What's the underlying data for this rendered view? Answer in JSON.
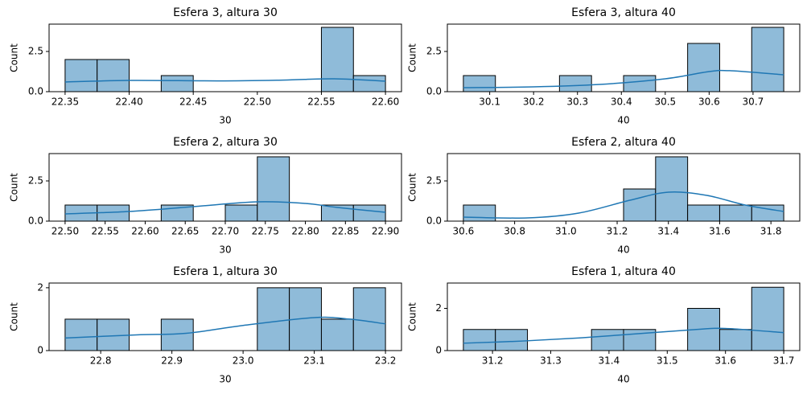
{
  "chart_data": [
    {
      "type": "histogram",
      "title": "Esfera 3, altura 30",
      "xlabel": "30",
      "ylabel": "Count",
      "bins": [
        22.35,
        22.375,
        22.4,
        22.425,
        22.45,
        22.475,
        22.5,
        22.525,
        22.55,
        22.575,
        22.6
      ],
      "values": [
        2,
        2,
        0,
        1,
        0,
        0,
        0,
        0,
        4,
        1
      ],
      "color": "#8fbbd9",
      "edgecolor": "#000000",
      "kde": {
        "color": "#1f77b4",
        "x": [
          22.35,
          22.4,
          22.47,
          22.52,
          22.56,
          22.6
        ],
        "values": [
          0.6,
          0.7,
          0.67,
          0.72,
          0.8,
          0.65
        ]
      },
      "xlim": [
        22.3375,
        22.6125
      ],
      "ylim": [
        0,
        4.2
      ],
      "xticks": [
        22.35,
        {
          "value": 22.4,
          "label": "22.40"
        },
        22.45,
        {
          "value": 22.5,
          "label": "22.50"
        },
        22.55,
        {
          "value": 22.6,
          "label": "22.60"
        }
      ],
      "yticks": [
        {
          "value": 0,
          "label": "0.0"
        },
        2.5
      ]
    },
    {
      "type": "histogram",
      "title": "Esfera 3, altura 40",
      "xlabel": "40",
      "ylabel": "Count",
      "bins": [
        30.04,
        30.113,
        30.186,
        30.259,
        30.332,
        30.405,
        30.478,
        30.551,
        30.624,
        30.697,
        30.77
      ],
      "values": [
        1,
        0,
        0,
        1,
        0,
        1,
        0,
        3,
        0,
        4
      ],
      "color": "#8fbbd9",
      "edgecolor": "#000000",
      "kde": {
        "color": "#1f77b4",
        "x": [
          30.04,
          30.2,
          30.35,
          30.5,
          30.6,
          30.65,
          30.77
        ],
        "values": [
          0.25,
          0.3,
          0.45,
          0.8,
          1.25,
          1.3,
          1.05
        ]
      },
      "xlim": [
        30.0035,
        30.8065
      ],
      "ylim": [
        0,
        4.2
      ],
      "xticks": [
        30.1,
        30.2,
        30.3,
        30.4,
        30.5,
        30.6,
        30.7
      ],
      "yticks": [
        {
          "value": 0,
          "label": "0.0"
        },
        2.5
      ]
    },
    {
      "type": "histogram",
      "title": "Esfera 2, altura 30",
      "xlabel": "30",
      "ylabel": "Count",
      "bins": [
        22.5,
        22.54,
        22.58,
        22.62,
        22.66,
        22.7,
        22.74,
        22.78,
        22.82,
        22.86,
        22.9
      ],
      "values": [
        1,
        1,
        0,
        1,
        0,
        1,
        4,
        0,
        1,
        1
      ],
      "color": "#8fbbd9",
      "edgecolor": "#000000",
      "kde": {
        "color": "#1f77b4",
        "x": [
          22.5,
          22.58,
          22.66,
          22.74,
          22.8,
          22.84,
          22.9
        ],
        "values": [
          0.45,
          0.6,
          0.9,
          1.2,
          1.1,
          0.85,
          0.55
        ]
      },
      "xlim": [
        22.48,
        22.92
      ],
      "ylim": [
        0,
        4.2
      ],
      "xticks": [
        {
          "value": 22.5,
          "label": "22.50"
        },
        22.55,
        {
          "value": 22.6,
          "label": "22.60"
        },
        22.65,
        {
          "value": 22.7,
          "label": "22.70"
        },
        22.75,
        {
          "value": 22.8,
          "label": "22.80"
        },
        22.85,
        {
          "value": 22.9,
          "label": "22.90"
        }
      ],
      "yticks": [
        {
          "value": 0,
          "label": "0.0"
        },
        2.5
      ]
    },
    {
      "type": "histogram",
      "title": "Esfera 2, altura 40",
      "xlabel": "40",
      "ylabel": "Count",
      "bins": [
        30.6,
        30.725,
        30.85,
        30.975,
        31.1,
        31.225,
        31.35,
        31.475,
        31.6,
        31.725,
        31.85
      ],
      "values": [
        1,
        0,
        0,
        0,
        0,
        2,
        4,
        1,
        1,
        1
      ],
      "color": "#8fbbd9",
      "edgecolor": "#000000",
      "kde": {
        "color": "#1f77b4",
        "x": [
          30.6,
          30.85,
          31.05,
          31.25,
          31.4,
          31.55,
          31.7,
          31.85
        ],
        "values": [
          0.25,
          0.2,
          0.5,
          1.3,
          1.8,
          1.6,
          1.0,
          0.6
        ]
      },
      "xlim": [
        30.5375,
        31.9125
      ],
      "ylim": [
        0,
        4.2
      ],
      "xticks": [
        30.6,
        30.8,
        {
          "value": 31,
          "label": "31.0"
        },
        31.2,
        31.4,
        31.6,
        31.8
      ],
      "yticks": [
        {
          "value": 0,
          "label": "0.0"
        },
        2.5
      ]
    },
    {
      "type": "histogram",
      "title": "Esfera 1, altura 30",
      "xlabel": "30",
      "ylabel": "Count",
      "bins": [
        22.75,
        22.795,
        22.84,
        22.885,
        22.93,
        22.975,
        23.02,
        23.065,
        23.11,
        23.155,
        23.2
      ],
      "values": [
        1,
        1,
        0,
        1,
        0,
        0,
        2,
        2,
        1,
        2
      ],
      "color": "#8fbbd9",
      "edgecolor": "#000000",
      "kde": {
        "color": "#1f77b4",
        "x": [
          22.75,
          22.85,
          22.92,
          23.0,
          23.1,
          23.15,
          23.2
        ],
        "values": [
          0.4,
          0.5,
          0.55,
          0.8,
          1.05,
          1.0,
          0.85
        ]
      },
      "xlim": [
        22.7275,
        23.2225
      ],
      "ylim": [
        0,
        2.15
      ],
      "xticks": [
        22.8,
        22.9,
        {
          "value": 23,
          "label": "23.0"
        },
        23.1,
        23.2
      ],
      "yticks": [
        0,
        2
      ]
    },
    {
      "type": "histogram",
      "title": "Esfera 1, altura 40",
      "xlabel": "40",
      "ylabel": "Count",
      "bins": [
        31.15,
        31.205,
        31.26,
        31.315,
        31.37,
        31.425,
        31.48,
        31.535,
        31.59,
        31.645,
        31.7
      ],
      "values": [
        1,
        1,
        0,
        0,
        1,
        1,
        0,
        2,
        1,
        3
      ],
      "color": "#8fbbd9",
      "edgecolor": "#000000",
      "kde": {
        "color": "#1f77b4",
        "x": [
          31.15,
          31.25,
          31.35,
          31.45,
          31.55,
          31.6,
          31.7
        ],
        "values": [
          0.35,
          0.45,
          0.6,
          0.8,
          1.0,
          1.05,
          0.85
        ]
      },
      "xlim": [
        31.1225,
        31.7275
      ],
      "ylim": [
        0,
        3.2
      ],
      "xticks": [
        31.2,
        31.3,
        31.4,
        31.5,
        31.6,
        31.7
      ],
      "yticks": [
        0,
        2
      ]
    }
  ]
}
